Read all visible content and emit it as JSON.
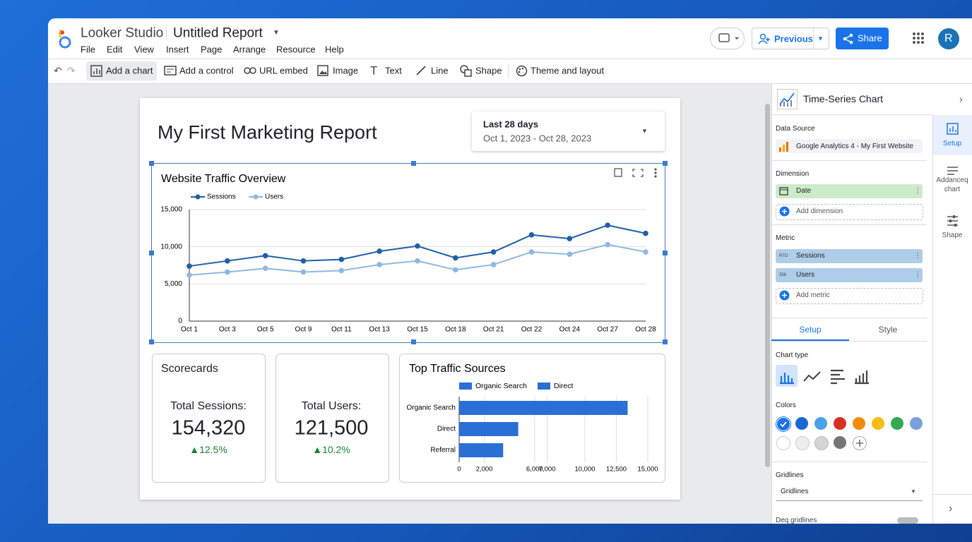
{
  "app": {
    "name": "Looker Studio",
    "report_name": "Untitled Report",
    "menu": [
      "File",
      "Edit",
      "View",
      "Insert",
      "Page",
      "Arrange",
      "Resource",
      "Help"
    ],
    "previous": "Previous",
    "share": "Share",
    "avatar": "R"
  },
  "toolbar": [
    "Add a chart",
    "Add a control",
    "URL embed",
    "Image",
    "Text",
    "Line",
    "Shape",
    "Theme and layout"
  ],
  "report": {
    "title": "My First Marketing Report",
    "date_range": {
      "label": "Last 28 days",
      "dates": "Oct 1, 2023 - Oct 28, 2023"
    },
    "scorecards": {
      "title": "Scorecards",
      "cards": [
        {
          "label": "Total Sessions:",
          "value": "154,320",
          "change": "▲12.5%"
        },
        {
          "label": "Total Users:",
          "value": "121,500",
          "change": "▲10.2%"
        }
      ]
    }
  },
  "chart_data": [
    {
      "type": "line",
      "title": "Website Traffic Overview",
      "categories": [
        "Oct 1",
        "Oct 3",
        "Oct 5",
        "Oct 9",
        "Oct 11",
        "Oct 13",
        "Oct 15",
        "Oct 18",
        "Oct 21",
        "Oct 22",
        "Oct 24",
        "Oct 27",
        "Oct 28"
      ],
      "series": [
        {
          "name": "Sessions",
          "color": "#1f5fa8",
          "values": [
            7400,
            8100,
            8800,
            8100,
            8300,
            9400,
            10100,
            8500,
            9300,
            11600,
            11100,
            12900,
            11800
          ]
        },
        {
          "name": "Users",
          "color": "#8fb8e0",
          "values": [
            6200,
            6600,
            7100,
            6600,
            6800,
            7600,
            8100,
            6900,
            7600,
            9300,
            9000,
            10300,
            9300
          ]
        }
      ],
      "ylim": [
        0,
        15000
      ],
      "yticks": [
        0,
        {
          "value": 5000,
          "label": "5,000"
        },
        {
          "value": 10000,
          "label": "10,000"
        },
        {
          "value": 15000,
          "label": "15,000"
        }
      ],
      "grid": true
    },
    {
      "type": "hbar",
      "title": "Top Traffic Sources",
      "legend": [
        "Organic Search",
        "Direct"
      ],
      "color": "#2a6fd6",
      "categories": [
        "Organic Search",
        "Direct",
        "Referral"
      ],
      "values": [
        13400,
        4700,
        3500
      ],
      "xlim": [
        0,
        15000
      ],
      "xticks": [
        0,
        {
          "value": 2000,
          "label": "2,000"
        },
        {
          "value": 6000,
          "label": "6,000"
        },
        {
          "value": 7000,
          "label": "7,000"
        },
        {
          "value": 10000,
          "label": "10,000"
        },
        {
          "value": 12500,
          "label": "12,500"
        },
        {
          "value": 15000,
          "label": "15,000"
        }
      ],
      "grid": true
    }
  ],
  "panel": {
    "title": "Time-Series Chart",
    "data_source_label": "Data Source",
    "data_source": "Google Analytics 4 - My First Website",
    "dimension_label": "Dimension",
    "dimension": "Date",
    "add_dimension": "Add dimension",
    "metric_label": "Metric",
    "metrics": [
      {
        "icon": "RTO",
        "name": "Sessions"
      },
      {
        "icon": "356",
        "name": "Users"
      }
    ],
    "add_metric": "Add metric",
    "tabs": [
      "Setup",
      "Style"
    ],
    "chart_type_label": "Chart type",
    "colors_label": "Colors",
    "gridlines_label": "Gridlines",
    "gridlines_value": "Gridlines",
    "toggle_label": "Deq gridlines",
    "rail": [
      "Setup",
      "Addanceq chart",
      "Shape"
    ]
  }
}
